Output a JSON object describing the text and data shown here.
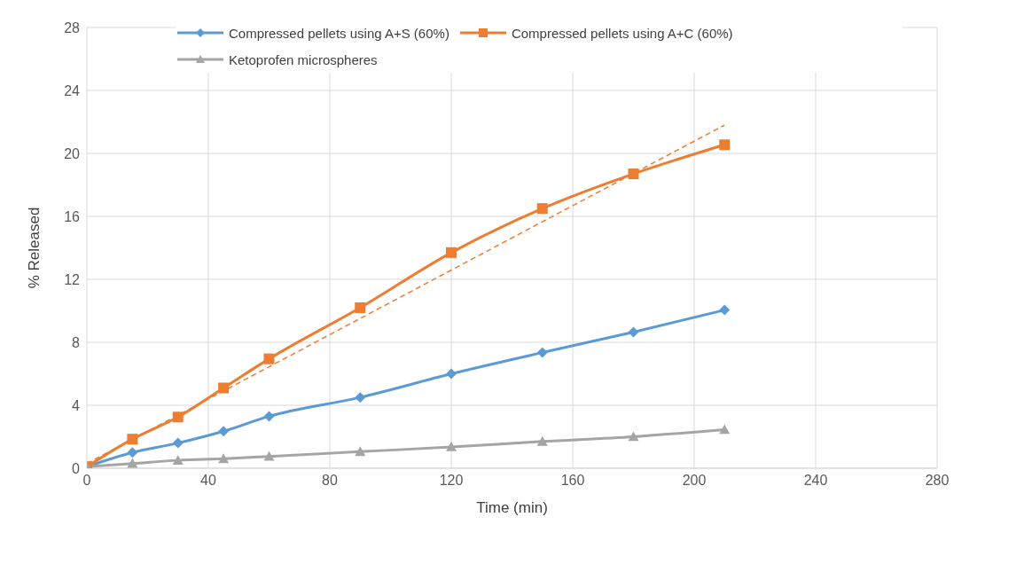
{
  "chart_data": {
    "type": "line",
    "xlabel": "Time (min)",
    "ylabel": "% Released",
    "x": [
      0,
      15,
      30,
      45,
      60,
      90,
      120,
      150,
      180,
      210
    ],
    "series": [
      {
        "name": "Compressed pellets using A+S (60%)",
        "color": "#5b9bd5",
        "marker": "diamond",
        "values": [
          0.1,
          1.0,
          1.6,
          2.35,
          3.3,
          4.5,
          6.0,
          7.35,
          8.65,
          10.05
        ]
      },
      {
        "name": "Compressed pellets using A+C (60%)",
        "color": "#ed7d31",
        "marker": "square",
        "values": [
          0.1,
          1.85,
          3.25,
          5.1,
          6.95,
          10.2,
          13.7,
          16.5,
          18.7,
          20.55
        ]
      },
      {
        "name": "Ketoprofen microspheres",
        "color": "#a5a5a5",
        "marker": "triangle",
        "values": [
          0.1,
          0.3,
          0.5,
          0.6,
          0.75,
          1.05,
          1.35,
          1.7,
          2.0,
          2.45
        ]
      },
      {
        "type": "line",
        "color": "#ed7d31",
        "marker": "none",
        "line_style": "dashed",
        "x": [
          0,
          210
        ],
        "values": [
          0.3,
          21.8
        ]
      }
    ],
    "xlim": [
      0,
      280
    ],
    "xticks": [
      0,
      40,
      80,
      120,
      160,
      200,
      240,
      280
    ],
    "ylim": [
      0,
      28
    ],
    "yticks": [
      0,
      4,
      8,
      12,
      16,
      20,
      24,
      28
    ],
    "grid": true,
    "legend": "top"
  }
}
